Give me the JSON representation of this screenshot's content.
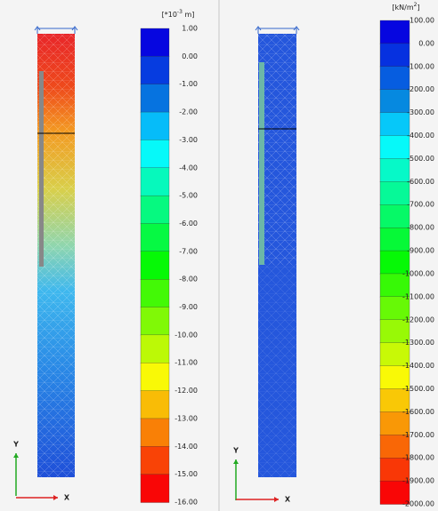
{
  "panels": [
    {
      "unit": {
        "base": "[*10",
        "sup": "-3",
        "tail": " m]"
      },
      "legend": [
        "1.00",
        "0.00",
        "-1.00",
        "-2.00",
        "-3.00",
        "-4.00",
        "-5.00",
        "-6.00",
        "-7.00",
        "-8.00",
        "-9.00",
        "-10.00",
        "-11.00",
        "-12.00",
        "-13.00",
        "-14.00",
        "-15.00",
        "-16.00"
      ],
      "axes": {
        "y": "Y",
        "x": "X"
      }
    },
    {
      "unit": {
        "base": "[kN/m",
        "sup": "2",
        "tail": "]"
      },
      "legend": [
        "100.00",
        "0.00",
        "-100.00",
        "-200.00",
        "-300.00",
        "-400.00",
        "-500.00",
        "-600.00",
        "-700.00",
        "-800.00",
        "-900.00",
        "-1000.00",
        "-1100.00",
        "-1200.00",
        "-1300.00",
        "-1400.00",
        "-1500.00",
        "-1600.00",
        "-1700.00",
        "-1800.00",
        "-1900.00",
        "-2000.00"
      ],
      "axes": {
        "y": "Y",
        "x": "X"
      }
    }
  ]
}
